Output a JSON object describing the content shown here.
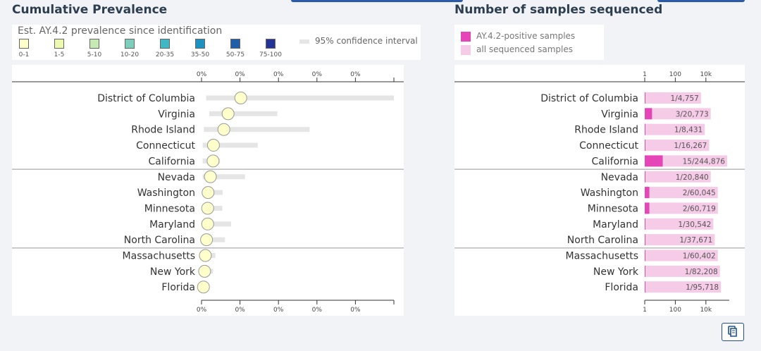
{
  "left_panel": {
    "title": "Cumulative Prevalence",
    "legend": {
      "title": "Est. AY.4.2 prevalence since identification",
      "bins": [
        {
          "label": "0-1",
          "color": "#ffffcc"
        },
        {
          "label": "1-5",
          "color": "#edf8b1"
        },
        {
          "label": "5-10",
          "color": "#c7e9b4"
        },
        {
          "label": "10-20",
          "color": "#7fcdbb"
        },
        {
          "label": "20-35",
          "color": "#41b6c4"
        },
        {
          "label": "35-50",
          "color": "#1d91c0"
        },
        {
          "label": "50-75",
          "color": "#225ea8"
        },
        {
          "label": "75-100",
          "color": "#253494"
        }
      ],
      "ci_label": "95% confidence interval"
    }
  },
  "right_panel": {
    "title": "Number of samples sequenced",
    "legend": [
      {
        "label": "AY.4.2-positive samples",
        "color": "#e645b7"
      },
      {
        "label": "all sequenced samples",
        "color": "#f5cbe7"
      }
    ]
  },
  "colors": {
    "dot_fill": "#ffffcc",
    "dot_stroke": "#999999",
    "ci": "#e5e5e5",
    "bar_all": "#f5cbe7",
    "bar_pos": "#e645b7",
    "accent": "#1f4f8f"
  },
  "chart_data": [
    {
      "type": "scatter",
      "title": "Cumulative Prevalence",
      "xlabel": "",
      "ylabel": "",
      "x_tick_labels": [
        "0%",
        "0%",
        "0%",
        "0%",
        "0%"
      ],
      "xlim": [
        0,
        0.05
      ],
      "categories": [
        "District of Columbia",
        "Virginia",
        "Rhode Island",
        "Connecticut",
        "California",
        "Nevada",
        "Washington",
        "Minnesota",
        "Maryland",
        "North Carolina",
        "Massachusetts",
        "New York",
        "Florida"
      ],
      "group_breaks": [
        5,
        10
      ],
      "series": [
        {
          "name": "prevalence",
          "values": [
            0.0102,
            0.0069,
            0.0058,
            0.0031,
            0.003,
            0.0023,
            0.0017,
            0.0016,
            0.0016,
            0.0013,
            0.001,
            0.0008,
            0.0005
          ]
        },
        {
          "name": "ci_low",
          "values": [
            0.0012,
            0.002,
            0.0006,
            0.0003,
            0.0003,
            0.0003,
            0.0004,
            0.0004,
            0.0004,
            0.0003,
            0.0003,
            0.0002,
            0.0001
          ]
        },
        {
          "name": "ci_high",
          "values": [
            0.05,
            0.0197,
            0.0281,
            0.0146,
            0.0048,
            0.0113,
            0.0055,
            0.0054,
            0.0077,
            0.0061,
            0.0036,
            0.003,
            0.002
          ]
        }
      ]
    },
    {
      "type": "bar",
      "title": "Number of samples sequenced",
      "x_scale": "log",
      "x_ticks": [
        1,
        100,
        10000
      ],
      "x_tick_labels": [
        "1",
        "100",
        "10k"
      ],
      "xlim": [
        1,
        1000000
      ],
      "categories": [
        "District of Columbia",
        "Virginia",
        "Rhode Island",
        "Connecticut",
        "California",
        "Nevada",
        "Washington",
        "Minnesota",
        "Maryland",
        "North Carolina",
        "Massachusetts",
        "New York",
        "Florida"
      ],
      "group_breaks": [
        5,
        10
      ],
      "series": [
        {
          "name": "AY.4.2-positive samples",
          "values": [
            1,
            3,
            1,
            1,
            15,
            1,
            2,
            2,
            1,
            1,
            1,
            1,
            1
          ]
        },
        {
          "name": "all sequenced samples",
          "values": [
            4757,
            20773,
            8431,
            16267,
            244876,
            20840,
            60045,
            60719,
            30542,
            37671,
            60402,
            82208,
            95718
          ]
        }
      ],
      "data_labels": [
        "1/4,757",
        "3/20,773",
        "1/8,431",
        "1/16,267",
        "15/244,876",
        "1/20,840",
        "2/60,045",
        "2/60,719",
        "1/30,542",
        "1/37,671",
        "1/60,402",
        "1/82,208",
        "1/95,718"
      ]
    }
  ]
}
